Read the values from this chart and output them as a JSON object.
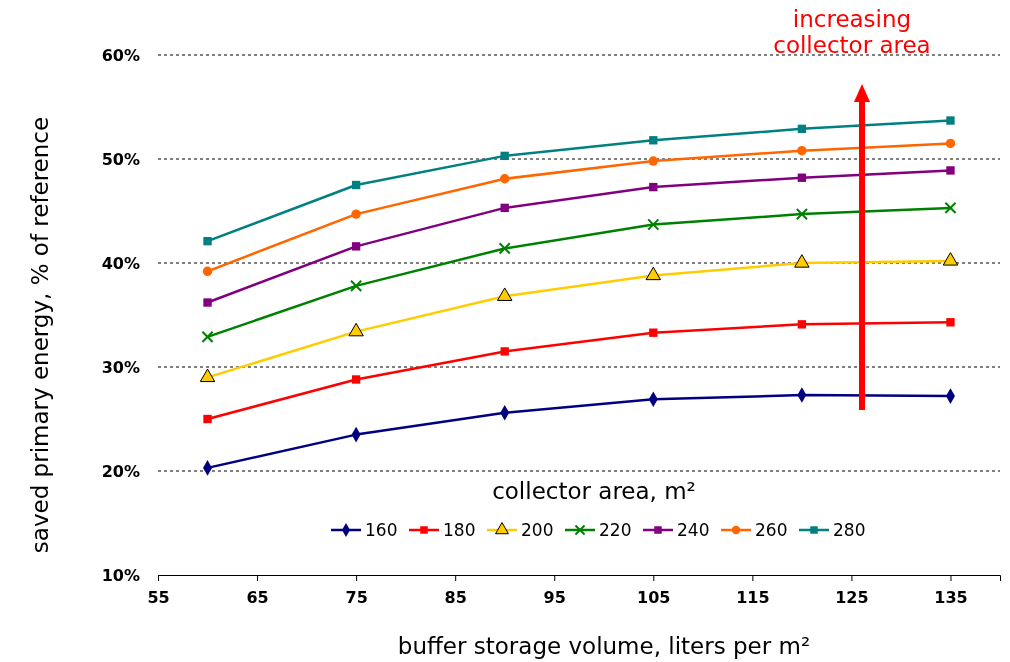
{
  "chart_data": {
    "type": "line",
    "x": [
      60,
      75,
      90,
      105,
      120,
      135
    ],
    "xlim": [
      55,
      140
    ],
    "xticks": [
      55,
      65,
      75,
      85,
      95,
      105,
      115,
      125,
      135
    ],
    "ylim": [
      10,
      60
    ],
    "yticks": [
      {
        "value": 10,
        "label": "10%"
      },
      {
        "value": 20,
        "label": "20%"
      },
      {
        "value": 30,
        "label": "30%"
      },
      {
        "value": 40,
        "label": "40%"
      },
      {
        "value": 50,
        "label": "50%"
      },
      {
        "value": 60,
        "label": "60%"
      }
    ],
    "xlabel": "buffer storage volume, liters per m²",
    "ylabel": "saved primary energy,  % of reference",
    "legend_title": "collector area, m²",
    "legend": "bottom",
    "grid": "y",
    "line_style": "solid",
    "annotations": [
      "increasing collector area"
    ],
    "series": [
      {
        "name": "160",
        "color": "#000080",
        "marker": "diamond",
        "values": [
          20.3,
          23.5,
          25.6,
          26.9,
          27.3,
          27.2
        ]
      },
      {
        "name": "180",
        "color": "#ff0000",
        "marker": "square",
        "values": [
          25.0,
          28.8,
          31.5,
          33.3,
          34.1,
          34.3
        ]
      },
      {
        "name": "200",
        "color": "#ffcc00",
        "marker": "triangle",
        "values": [
          29.0,
          33.4,
          36.8,
          38.8,
          40.0,
          40.2
        ]
      },
      {
        "name": "220",
        "color": "#008000",
        "marker": "cross",
        "values": [
          32.9,
          37.8,
          41.4,
          43.7,
          44.7,
          45.3
        ]
      },
      {
        "name": "240",
        "color": "#800080",
        "marker": "square",
        "values": [
          36.2,
          41.6,
          45.3,
          47.3,
          48.2,
          48.9
        ]
      },
      {
        "name": "260",
        "color": "#ff6600",
        "marker": "circle",
        "values": [
          39.2,
          44.7,
          48.1,
          49.8,
          50.8,
          51.5
        ]
      },
      {
        "name": "280",
        "color": "#008080",
        "marker": "square",
        "values": [
          42.1,
          47.5,
          50.3,
          51.8,
          52.9,
          53.7
        ]
      }
    ]
  }
}
